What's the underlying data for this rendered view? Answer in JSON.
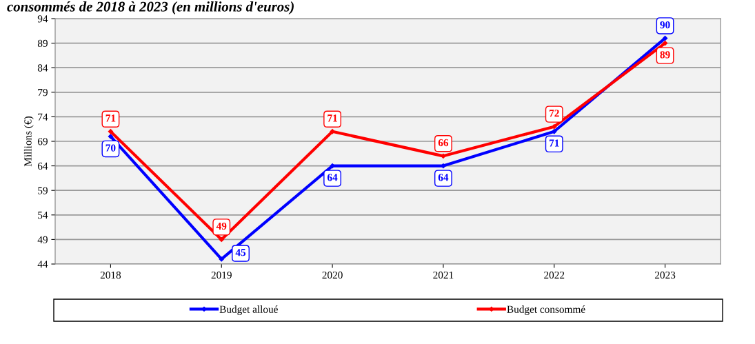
{
  "chart_data": {
    "type": "line",
    "title": "consommés de 2018 à 2023 (en millions d'euros)",
    "ylabel": "Millions (€)",
    "categories": [
      "2018",
      "2019",
      "2020",
      "2021",
      "2022",
      "2023"
    ],
    "series": [
      {
        "name": "Budget alloué",
        "color": "#0000ff",
        "values": [
          70,
          45,
          64,
          64,
          71,
          90
        ]
      },
      {
        "name": "Budget consommé",
        "color": "#ff0000",
        "values": [
          71,
          49,
          71,
          66,
          72,
          89
        ]
      }
    ],
    "ylim": [
      44,
      94
    ],
    "yticks": [
      44,
      49,
      54,
      59,
      64,
      69,
      74,
      79,
      84,
      89,
      94
    ],
    "grid": "y",
    "legend": "bottom",
    "marker": "diamond",
    "line_style": "solid",
    "data_labels": true
  }
}
